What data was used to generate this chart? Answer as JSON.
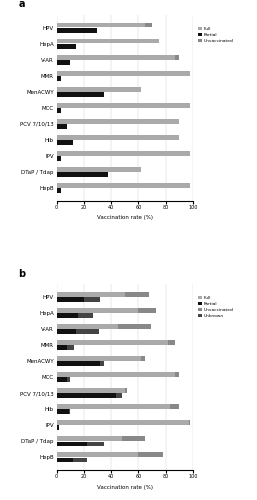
{
  "panel_a": {
    "categories": [
      "HPV",
      "HepA",
      "V-AR",
      "MMR",
      "MenACWY",
      "MCC",
      "PCV 7/10/13",
      "Hib",
      "IPV",
      "DTaP / Tdap",
      "HepB"
    ],
    "full": [
      65,
      75,
      87,
      98,
      62,
      98,
      90,
      90,
      98,
      62,
      98
    ],
    "partial": [
      30,
      14,
      10,
      3,
      35,
      3,
      8,
      12,
      3,
      38,
      3
    ],
    "unvaccinated": [
      5,
      0,
      3,
      0,
      0,
      0,
      0,
      0,
      0,
      0,
      0
    ],
    "legend_labels": [
      "Full",
      "Partial",
      "Unvaccinated"
    ],
    "colors_full": "#aaaaaa",
    "colors_partial": "#111111",
    "colors_unvac": "#888888",
    "xlabel": "Vaccination rate (%)",
    "xlim": [
      0,
      100
    ],
    "title": "a"
  },
  "panel_b": {
    "categories": [
      "HPV",
      "HepA",
      "V-AR",
      "MMR",
      "MenACWY",
      "MCC",
      "PCV 7/10/13",
      "Hib",
      "IPV",
      "DTaP / Tdap",
      "HepB"
    ],
    "full": [
      50,
      60,
      45,
      82,
      62,
      87,
      50,
      83,
      97,
      48,
      60
    ],
    "partial": [
      20,
      16,
      14,
      8,
      32,
      8,
      44,
      9,
      2,
      22,
      12
    ],
    "unvaccinated": [
      18,
      13,
      24,
      5,
      3,
      3,
      2,
      7,
      1,
      17,
      18
    ],
    "unknown": [
      12,
      11,
      17,
      5,
      3,
      2,
      4,
      1,
      0,
      13,
      10
    ],
    "legend_labels": [
      "Full",
      "Partial",
      "Unvaccinated",
      "Unknown"
    ],
    "colors_full": "#aaaaaa",
    "colors_partial": "#111111",
    "colors_unvac": "#888888",
    "colors_unknown": "#444444",
    "xlabel": "Vaccination rate (%)",
    "xlim": [
      0,
      100
    ],
    "title": "b"
  },
  "fig_width": 2.57,
  "fig_height": 5.0,
  "dpi": 100
}
